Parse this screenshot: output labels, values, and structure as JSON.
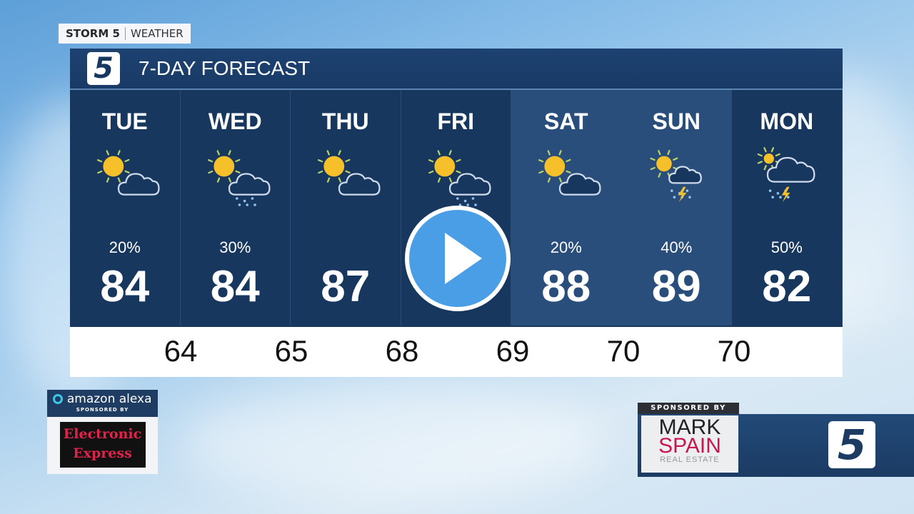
{
  "brand": {
    "name": "STORM 5",
    "section": "WEATHER"
  },
  "header": {
    "logo": "5",
    "title": "7-DAY FORECAST"
  },
  "days": [
    {
      "day": "TUE",
      "icon": "partly-cloudy",
      "precip": "20%",
      "high": "84"
    },
    {
      "day": "WED",
      "icon": "partly-cloudy-rain",
      "precip": "30%",
      "high": "84"
    },
    {
      "day": "THU",
      "icon": "partly-cloudy",
      "precip": "",
      "high": "87"
    },
    {
      "day": "FRI",
      "icon": "partly-cloudy-rain",
      "precip": "",
      "high": ""
    },
    {
      "day": "SAT",
      "icon": "partly-cloudy",
      "precip": "20%",
      "high": "88"
    },
    {
      "day": "SUN",
      "icon": "partly-cloudy-storm",
      "precip": "40%",
      "high": "89"
    },
    {
      "day": "MON",
      "icon": "storm",
      "precip": "50%",
      "high": "82"
    }
  ],
  "lows": [
    "64",
    "65",
    "68",
    "69",
    "70",
    "70"
  ],
  "sponsors": {
    "alexa": "amazon alexa",
    "alexa_sub": "SPONSORED BY",
    "ee1": "Electronic",
    "ee2": "Express",
    "sponsored_by": "SPONSORED BY",
    "mark": "MARK",
    "spain": "SPAIN",
    "real_estate": "REAL ESTATE",
    "logo": "5"
  },
  "colors": {
    "panel": "#17375f",
    "panel_alt": "#2a4e7c",
    "sun": "#f5c02a",
    "play": "#4a9ee6"
  }
}
